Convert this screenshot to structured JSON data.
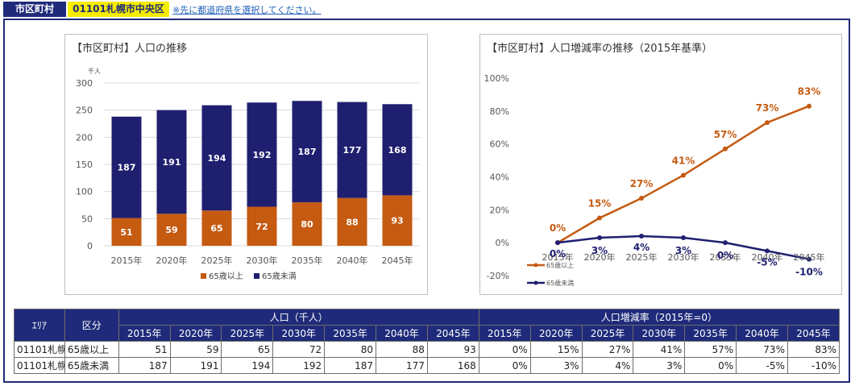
{
  "header": {
    "label": "市区町村",
    "selected": "01101札幌市中央区",
    "note": "※先に都道府県を選択してください。"
  },
  "chart_data": [
    {
      "type": "bar",
      "stacked": true,
      "title": "【市区町村】人口の推移",
      "unit_label": "千人",
      "categories": [
        "2015年",
        "2020年",
        "2025年",
        "2030年",
        "2035年",
        "2040年",
        "2045年"
      ],
      "yticks": [
        "0",
        "50",
        "100",
        "150",
        "200",
        "250",
        "300"
      ],
      "ylim": [
        0,
        300
      ],
      "series": [
        {
          "name": "65歳以上",
          "color": "#c55a11",
          "values": [
            51,
            59,
            65,
            72,
            80,
            88,
            93
          ]
        },
        {
          "name": "65歳未満",
          "color": "#1f1f70",
          "values": [
            187,
            191,
            194,
            192,
            187,
            177,
            168
          ]
        }
      ],
      "legend": "bottom"
    },
    {
      "type": "line",
      "title": "【市区町村】人口増減率の推移（2015年基準）",
      "categories": [
        "2015年",
        "2020年",
        "2025年",
        "2030年",
        "2035年",
        "2040年",
        "2045年"
      ],
      "yticks": [
        "-20%",
        "0%",
        "20%",
        "40%",
        "60%",
        "80%",
        "100%"
      ],
      "ylim": [
        -20,
        100
      ],
      "series": [
        {
          "name": "65歳以上",
          "color": "#c55a11",
          "values": [
            0,
            15,
            27,
            41,
            57,
            73,
            83
          ],
          "labels": [
            "0%",
            "15%",
            "27%",
            "41%",
            "57%",
            "73%",
            "83%"
          ]
        },
        {
          "name": "65歳未満",
          "color": "#1f1f70",
          "values": [
            0,
            3,
            4,
            3,
            0,
            -5,
            -10
          ],
          "labels": [
            "0%",
            "3%",
            "4%",
            "3%",
            "0%",
            "-5%",
            "-10%"
          ]
        }
      ],
      "legend": "bottom-left"
    }
  ],
  "table": {
    "col_area": "ｴﾘｱ",
    "col_kubun": "区分",
    "group_pop": "人口（千人）",
    "group_rate": "人口増減率（2015年=0）",
    "years": [
      "2015年",
      "2020年",
      "2025年",
      "2030年",
      "2035年",
      "2040年",
      "2045年"
    ],
    "rows": [
      {
        "area": "01101札幌",
        "kubun": "65歳以上",
        "pop": [
          "51",
          "59",
          "65",
          "72",
          "80",
          "88",
          "93"
        ],
        "rate": [
          "0%",
          "15%",
          "27%",
          "41%",
          "57%",
          "73%",
          "83%"
        ]
      },
      {
        "area": "01101札幌",
        "kubun": "65歳未満",
        "pop": [
          "187",
          "191",
          "194",
          "192",
          "187",
          "177",
          "168"
        ],
        "rate": [
          "0%",
          "3%",
          "4%",
          "3%",
          "0%",
          "-5%",
          "-10%"
        ]
      }
    ]
  }
}
